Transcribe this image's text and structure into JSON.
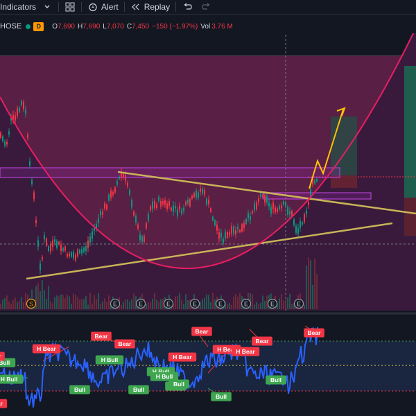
{
  "toolbar": {
    "indicators_label": "Indicators",
    "alert_label": "Alert",
    "replay_label": "Replay"
  },
  "legend": {
    "symbol": "HOSE",
    "timeframe_badge": "D",
    "open_label": "O",
    "open_value": "7,690",
    "high_label": "H",
    "high_value": "7,690",
    "low_label": "L",
    "low_value": "7,070",
    "close_label": "C",
    "close_value": "7,450",
    "change_value": "−150 (−1.97%)",
    "volume_label": "Vol",
    "volume_value": "3.76 M"
  },
  "colors": {
    "background": "#131722",
    "up": "#089981",
    "down": "#f23645",
    "cup": "#e91e63",
    "trendline": "#c9b458",
    "projection": "#ffc107",
    "zone": "#9c27b0",
    "oscillator": "#2962ff"
  },
  "event_markers": [
    "S",
    "E",
    "E",
    "E",
    "E",
    "E",
    "E",
    "E",
    "E"
  ],
  "oscillator_tags": [
    {
      "text": "Bear",
      "kind": "bear"
    },
    {
      "text": "H Bear",
      "kind": "bear"
    },
    {
      "text": "Bear",
      "kind": "bear"
    },
    {
      "text": "H Bull",
      "kind": "bull"
    },
    {
      "text": "Bear",
      "kind": "bear"
    },
    {
      "text": "H Bull",
      "kind": "bull"
    },
    {
      "text": "H Bear",
      "kind": "bear"
    },
    {
      "text": "H Bull",
      "kind": "bull"
    },
    {
      "text": "H Bull",
      "kind": "bull"
    },
    {
      "text": "Bull",
      "kind": "bull"
    },
    {
      "text": "Bull",
      "kind": "bull"
    },
    {
      "text": "Bull",
      "kind": "bull"
    },
    {
      "text": "Bull",
      "kind": "bull"
    },
    {
      "text": "Bear",
      "kind": "bear"
    },
    {
      "text": "H Bear",
      "kind": "bear"
    },
    {
      "text": "H Bear",
      "kind": "bear"
    },
    {
      "text": "Bear",
      "kind": "bear"
    },
    {
      "text": "Bull",
      "kind": "bull"
    },
    {
      "text": "Bull",
      "kind": "bull"
    },
    {
      "text": "Bear",
      "kind": "bear"
    },
    {
      "text": "H Bull",
      "kind": "bull"
    },
    {
      "text": "H Bear",
      "kind": "bear"
    }
  ]
}
